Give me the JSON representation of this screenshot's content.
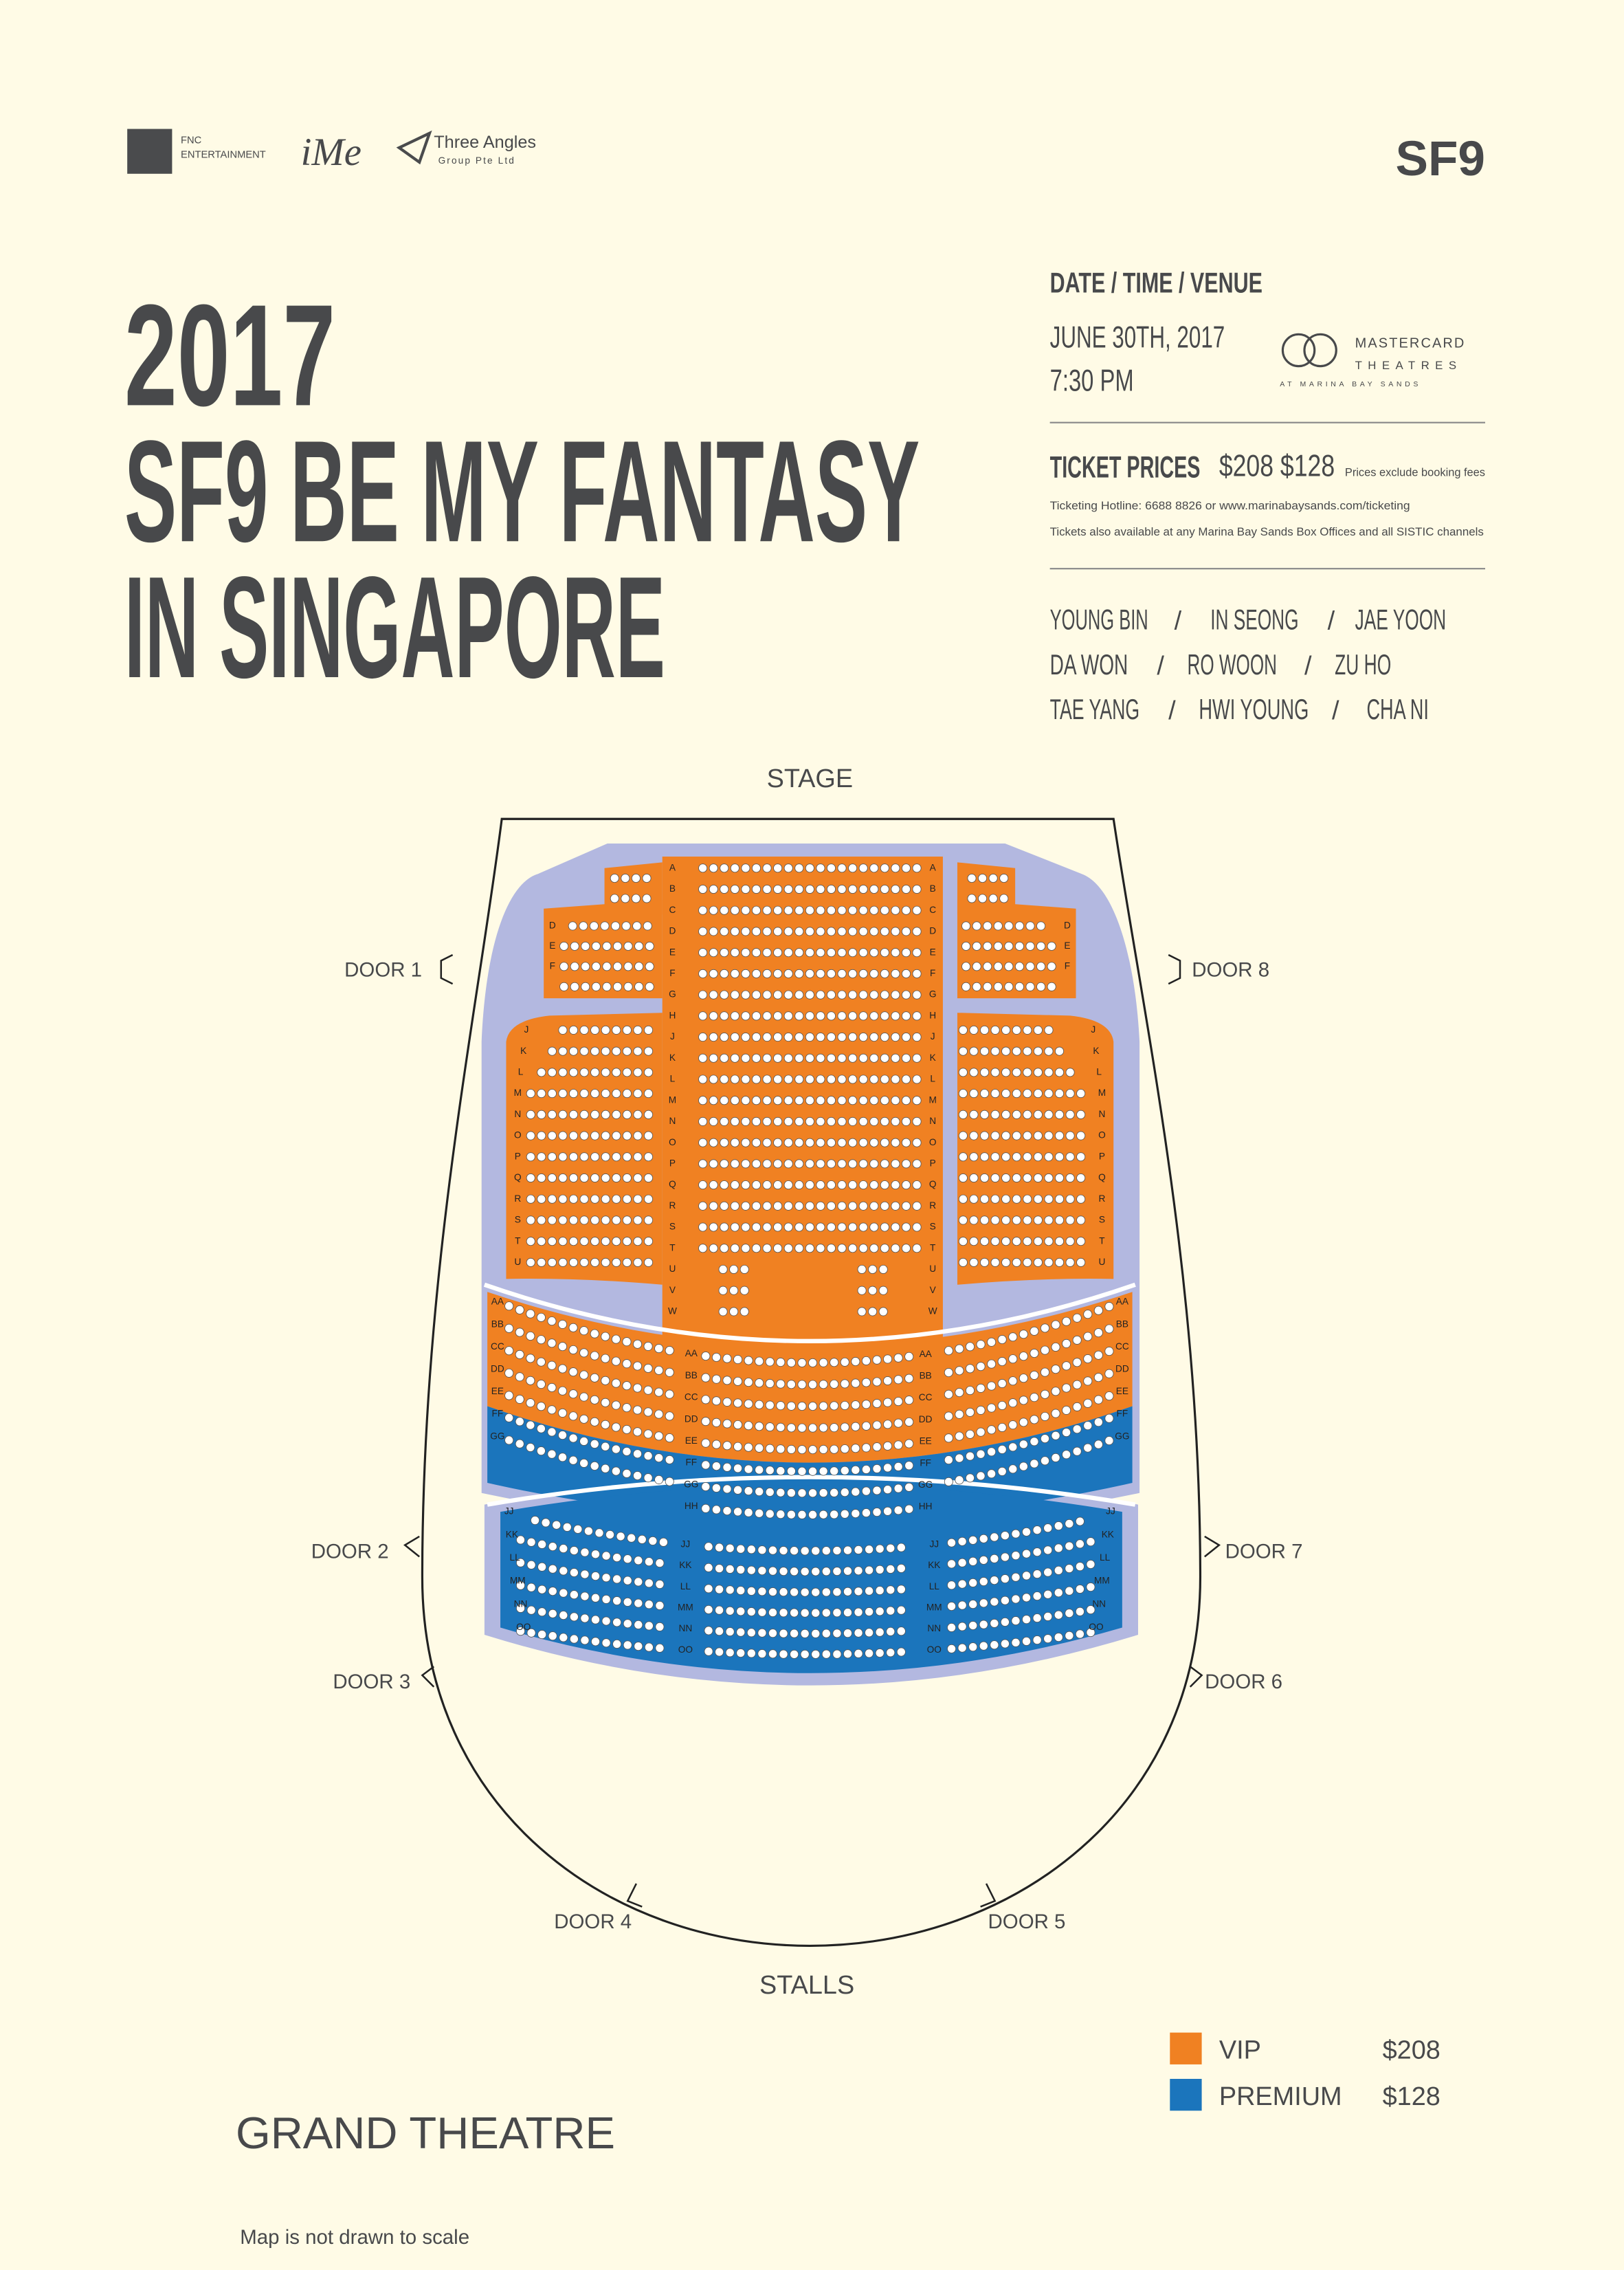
{
  "logos": {
    "fnc_line1": "FNC",
    "fnc_line2": "ENTERTAINMENT",
    "ime": "iMe",
    "three_angles": "Three Angles",
    "three_angles_sub": "Group Pte Ltd",
    "sf9": "SF9"
  },
  "title": [
    "2017",
    "SF9 BE MY FANTASY",
    "IN SINGAPORE"
  ],
  "info": {
    "heading": "DATE / TIME / VENUE",
    "date": "JUNE 30TH, 2017",
    "time": "7:30 PM",
    "venue": {
      "line1": "MASTERCARD",
      "line2": "THEATRES",
      "line3": "AT MARINA BAY SANDS"
    }
  },
  "tickets": {
    "label": "TICKET PRICES",
    "prices": "$208 $128",
    "note": "Prices exclude booking fees",
    "hotline": "Ticketing Hotline: 6688 8826 or www.marinabaysands.com/ticketing",
    "availability": "Tickets also available at any Marina Bay Sands Box Offices and all SISTIC channels"
  },
  "members": {
    "separator": "/",
    "rows": [
      [
        "YOUNG BIN",
        "IN SEONG",
        "JAE YOON"
      ],
      [
        "DA WON",
        "RO WOON",
        "ZU HO"
      ],
      [
        "TAE YANG",
        "HWI YOUNG",
        "CHA NI"
      ]
    ]
  },
  "map": {
    "stage": "STAGE",
    "stalls": "STALLS",
    "doors": [
      "DOOR 1",
      "DOOR 2",
      "DOOR 3",
      "DOOR 4",
      "DOOR 5",
      "DOOR 6",
      "DOOR 7",
      "DOOR 8"
    ],
    "rows": {
      "center": [
        "A",
        "B",
        "C",
        "D",
        "E",
        "F",
        "G",
        "H",
        "J",
        "K",
        "L",
        "M",
        "N",
        "O",
        "P",
        "Q",
        "R",
        "S",
        "T",
        "U",
        "V",
        "W"
      ],
      "front_side": [
        "D",
        "E",
        "F"
      ],
      "side": [
        "J",
        "K",
        "L",
        "M",
        "N",
        "O",
        "P",
        "Q",
        "R",
        "S",
        "T",
        "U"
      ],
      "rear": [
        "AA",
        "BB",
        "CC",
        "DD",
        "EE",
        "FF",
        "GG",
        "HH"
      ],
      "stalls": [
        "JJ",
        "KK",
        "LL",
        "MM",
        "NN",
        "OO"
      ]
    }
  },
  "legend": [
    {
      "label": "VIP",
      "price": "$208",
      "color": "#f08122"
    },
    {
      "label": "PREMIUM",
      "price": "$128",
      "color": "#1b75bc"
    }
  ],
  "venue_name": "GRAND THEATRE",
  "footnote": "Map is not drawn to scale"
}
